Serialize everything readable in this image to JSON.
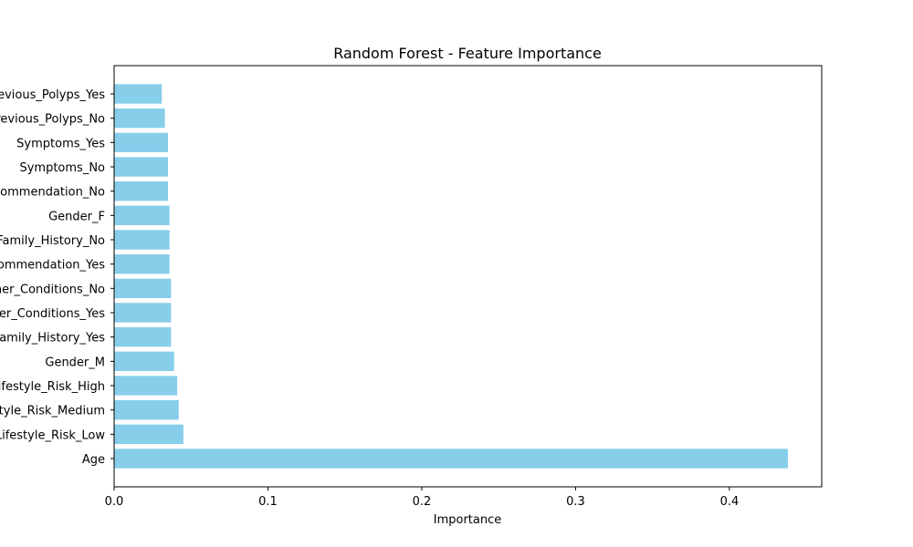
{
  "chart_data": {
    "type": "bar",
    "orientation": "horizontal",
    "title": "Random Forest - Feature Importance",
    "xlabel": "Importance",
    "ylabel": "",
    "xlim": [
      0.0,
      0.46
    ],
    "xticks": [
      0.0,
      0.1,
      0.2,
      0.3,
      0.4
    ],
    "xtick_labels": [
      "0.0",
      "0.1",
      "0.2",
      "0.3",
      "0.4"
    ],
    "grid": false,
    "bar_color": "#87ceeb",
    "categories": [
      "Age",
      "Lifestyle_Risk_Low",
      "Lifestyle_Risk_Medium",
      "Lifestyle_Risk_High",
      "Gender_M",
      "Family_History_Yes",
      "Other_Conditions_Yes",
      "Other_Conditions_No",
      "Recommendation_Yes",
      "Family_History_No",
      "Gender_F",
      "Recommendation_No",
      "Symptoms_No",
      "Symptoms_Yes",
      "Previous_Polyps_No",
      "Previous_Polyps_Yes"
    ],
    "values": [
      0.438,
      0.045,
      0.042,
      0.041,
      0.039,
      0.037,
      0.037,
      0.037,
      0.036,
      0.036,
      0.036,
      0.035,
      0.035,
      0.035,
      0.033,
      0.031
    ]
  }
}
